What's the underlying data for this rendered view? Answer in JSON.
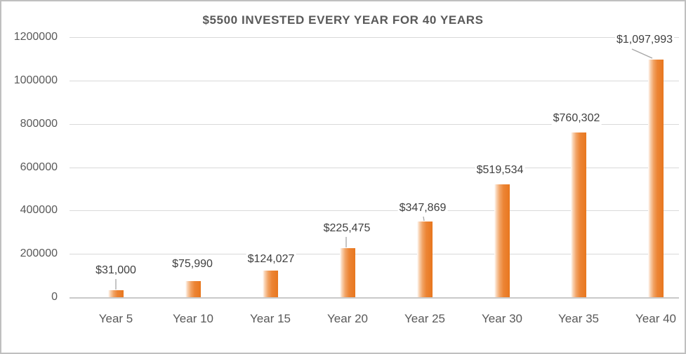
{
  "chart_data": {
    "type": "bar",
    "title": "$5500 INVESTED EVERY YEAR FOR 40 YEARS",
    "categories": [
      "Year 5",
      "Year 10",
      "Year 15",
      "Year 20",
      "Year 25",
      "Year 30",
      "Year 35",
      "Year 40"
    ],
    "values": [
      31000,
      75990,
      124027,
      225475,
      347869,
      519534,
      760302,
      1097993
    ],
    "value_labels": [
      "$31,000",
      "$75,990",
      "$124,027",
      "$225,475",
      "$347,869",
      "$519,534",
      "$760,302",
      "$1,097,993"
    ],
    "xlabel": "",
    "ylabel": "",
    "ylim": [
      0,
      1200000
    ],
    "y_ticks": [
      0,
      200000,
      400000,
      600000,
      800000,
      1000000,
      1200000
    ],
    "y_tick_labels": [
      "0",
      "200000",
      "400000",
      "600000",
      "800000",
      "1000000",
      "1200000"
    ],
    "grid": true,
    "legend": false,
    "colors": {
      "bar_main": "#ED7D31",
      "bar_gradient_start": "#FFFFFF",
      "bar_gradient_end": "#E8771F",
      "gridline": "#D9D9D9",
      "axis_line": "#C9C9C9",
      "axis_text": "#595959",
      "data_label_text": "#3F3F3F",
      "title_text": "#595959",
      "leader_line": "#A6A6A6",
      "frame_border": "#BFBFBF",
      "background": "#FFFFFF"
    }
  }
}
